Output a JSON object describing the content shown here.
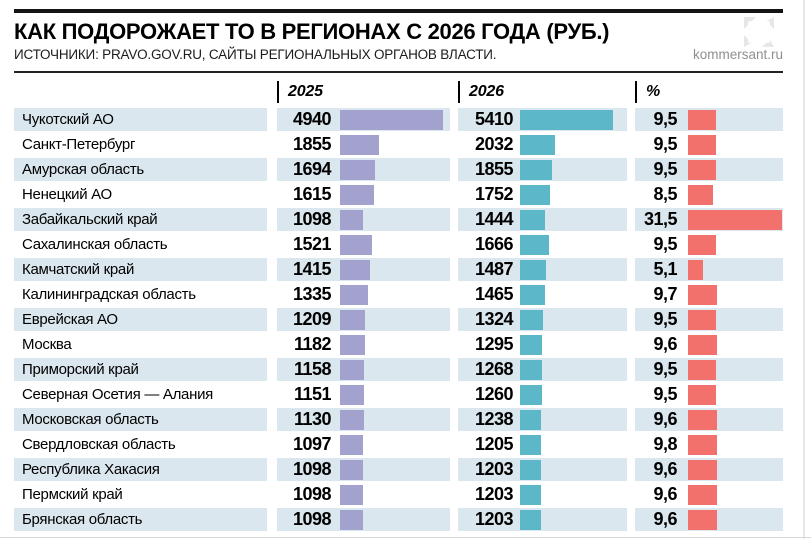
{
  "header": {
    "title": "КАК ПОДОРОЖАЕТ ТО В РЕГИОНАХ С 2026 ГОДА (РУБ.)",
    "sources": "ИСТОЧНИКИ: PRAVO.GOV.RU, САЙТЫ РЕГИОНАЛЬНЫХ ОРГАНОВ ВЛАСТИ.",
    "site": "kommersant.ru",
    "expand_icon": "expand-arrows-icon"
  },
  "columns": {
    "c2025": "2025",
    "c2026": "2026",
    "pct": "%"
  },
  "colors": {
    "row_alt": "#dbe7ee",
    "bar_2025": "#a3a2ce",
    "bar_2026": "#5cb8c9",
    "bar_pct": "#f3716c"
  },
  "chart_data": {
    "type": "bar",
    "orientation": "horizontal",
    "title": "КАК ПОДОРОЖАЕТ ТО В РЕГИОНАХ С 2026 ГОДА (РУБ.)",
    "subtitle": "ИСТОЧНИКИ: PRAVO.GOV.RU, САЙТЫ РЕГИОНАЛЬНЫХ ОРГАНОВ ВЛАСТИ.",
    "legend_position": "top",
    "grid": false,
    "categories": [
      "Чукотский АО",
      "Санкт-Петербург",
      "Амурская область",
      "Ненецкий АО",
      "Забайкальский край",
      "Сахалинская область",
      "Камчатский край",
      "Калининградская область",
      "Еврейская АО",
      "Москва",
      "Приморский край",
      "Северная Осетия — Алания",
      "Московская область",
      "Свердловская область",
      "Республика Хакасия",
      "Пермский край",
      "Брянская область"
    ],
    "series": [
      {
        "name": "2025",
        "unit": "руб.",
        "values": [
          4940,
          1855,
          1694,
          1615,
          1098,
          1521,
          1415,
          1335,
          1209,
          1182,
          1158,
          1151,
          1130,
          1097,
          1098,
          1098,
          1098
        ]
      },
      {
        "name": "2026",
        "unit": "руб.",
        "values": [
          5410,
          2032,
          1855,
          1752,
          1444,
          1666,
          1487,
          1465,
          1324,
          1295,
          1268,
          1260,
          1238,
          1205,
          1203,
          1203,
          1203
        ]
      },
      {
        "name": "%",
        "unit": "%",
        "values": [
          9.5,
          9.5,
          9.5,
          8.5,
          31.5,
          9.5,
          5.1,
          9.7,
          9.5,
          9.6,
          9.5,
          9.5,
          9.6,
          9.8,
          9.6,
          9.6,
          9.6
        ],
        "display": [
          "9,5",
          "9,5",
          "9,5",
          "8,5",
          "31,5",
          "9,5",
          "5,1",
          "9,7",
          "9,5",
          "9,6",
          "9,5",
          "9,5",
          "9,6",
          "9,8",
          "9,6",
          "9,6",
          "9,6"
        ]
      }
    ]
  }
}
